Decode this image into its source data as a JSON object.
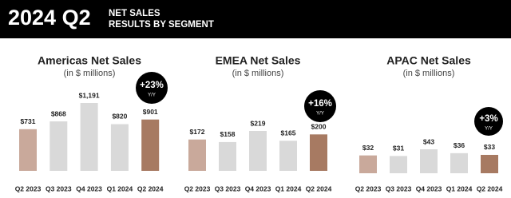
{
  "header": {
    "title": "2024 Q2",
    "lines": [
      "NET SALES",
      "RESULTS BY SEGMENT"
    ]
  },
  "chart_data": [
    {
      "type": "bar",
      "title": "Americas Net Sales",
      "subtitle": "(in $ millions)",
      "categories": [
        "Q2 2023",
        "Q3 2023",
        "Q4 2023",
        "Q1 2024",
        "Q2 2024"
      ],
      "values": [
        731,
        868,
        1191,
        820,
        901
      ],
      "value_labels": [
        "$731",
        "$868",
        "$1,191",
        "$820",
        "$901"
      ],
      "colors": [
        "#c9a99b",
        "#d9d9d9",
        "#d9d9d9",
        "#d9d9d9",
        "#a77a62"
      ],
      "annotation": {
        "text": "+23%",
        "sub": "Y/Y"
      }
    },
    {
      "type": "bar",
      "title": "EMEA Net Sales",
      "subtitle": "(in $ millions)",
      "categories": [
        "Q2 2023",
        "Q3 2023",
        "Q4 2023",
        "Q1 2024",
        "Q2 2024"
      ],
      "values": [
        172,
        158,
        219,
        165,
        200
      ],
      "value_labels": [
        "$172",
        "$158",
        "$219",
        "$165",
        "$200"
      ],
      "colors": [
        "#c9a99b",
        "#d9d9d9",
        "#d9d9d9",
        "#d9d9d9",
        "#a77a62"
      ],
      "annotation": {
        "text": "+16%",
        "sub": "Y/Y"
      }
    },
    {
      "type": "bar",
      "title": "APAC Net Sales",
      "subtitle": "(in $ millions)",
      "categories": [
        "Q2 2023",
        "Q3 2023",
        "Q4 2023",
        "Q1 2024",
        "Q2 2024"
      ],
      "values": [
        32,
        31,
        43,
        36,
        33
      ],
      "value_labels": [
        "$32",
        "$31",
        "$43",
        "$36",
        "$33"
      ],
      "colors": [
        "#c9a99b",
        "#d9d9d9",
        "#d9d9d9",
        "#d9d9d9",
        "#a77a62"
      ],
      "annotation": {
        "text": "+3%",
        "sub": "Y/Y"
      }
    }
  ]
}
